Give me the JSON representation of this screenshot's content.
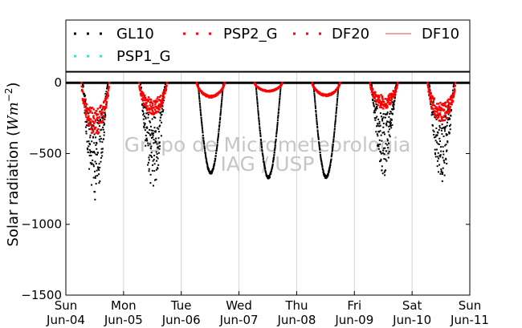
{
  "chart_data": {
    "type": "scatter",
    "ylabel": "Solar radiation (Wm⁻²)",
    "ylabel_parts": {
      "prefix": "Solar radiation (",
      "unit": "Wm",
      "exp": "−2",
      "suffix": ")"
    },
    "ylim": [
      -1500,
      75
    ],
    "yticks": [
      0,
      -500,
      -1000,
      -1500
    ],
    "ytick_labels": [
      "0",
      "−500",
      "−1000",
      "−1500"
    ],
    "xlim": [
      0,
      7
    ],
    "xticks": [
      0,
      1,
      2,
      3,
      4,
      5,
      6,
      7
    ],
    "xtick_labels": [
      [
        "Sun",
        "Jun-04"
      ],
      [
        "Mon",
        "Jun-05"
      ],
      [
        "Tue",
        "Jun-06"
      ],
      [
        "Wed",
        "Jun-07"
      ],
      [
        "Thu",
        "Jun-08"
      ],
      [
        "Fri",
        "Jun-09"
      ],
      [
        "Sat",
        "Jun-10"
      ],
      [
        "Sun",
        "Jun-11"
      ]
    ],
    "grid": "vertical",
    "legend_position": "top",
    "watermark": [
      "Grupo de Micrometeorologia",
      "IAG / USP"
    ],
    "series": [
      {
        "name": "GL10",
        "color": "#000000",
        "style": "dotted",
        "daily_min": [
          -760,
          -680,
          -640,
          -670,
          -670,
          -600,
          -650
        ]
      },
      {
        "name": "PSP2_G",
        "color": "#ff0000",
        "style": "dotted"
      },
      {
        "name": "DF20",
        "color": "#ff0000",
        "style": "dotted",
        "daily_min": [
          -330,
          -200,
          -100,
          -60,
          -90,
          -160,
          -250
        ]
      },
      {
        "name": "DF10",
        "color": "#ff8080",
        "style": "line"
      },
      {
        "name": "PSP1_G",
        "color": "#40e0d0",
        "style": "dotted"
      }
    ]
  }
}
